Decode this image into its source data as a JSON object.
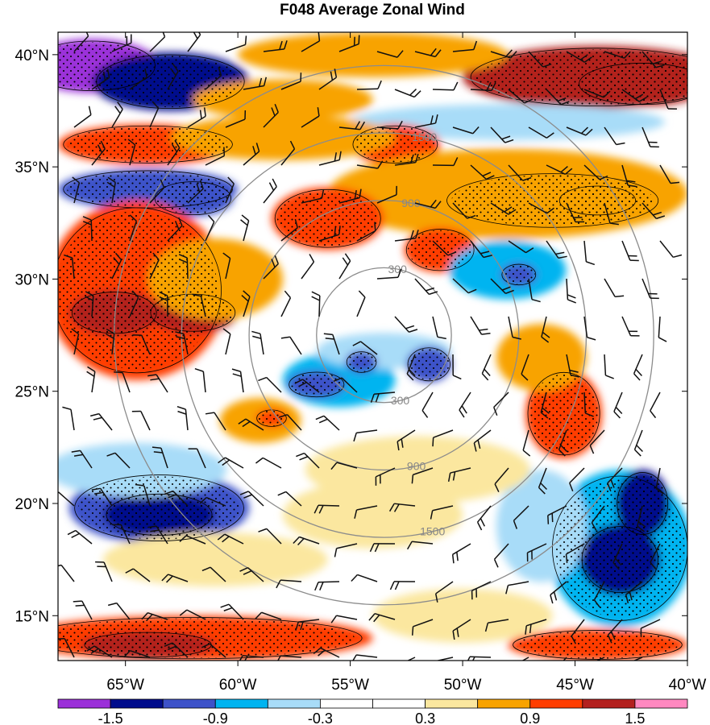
{
  "chart_data": {
    "type": "heatmap",
    "title": "F048 Average Zonal Wind",
    "x_axis": {
      "range": [
        -68,
        -40
      ],
      "tick_values": [
        -65,
        -60,
        -55,
        -50,
        -45,
        -40
      ],
      "tick_labels": [
        "65°W",
        "60°W",
        "55°W",
        "50°W",
        "45°W",
        "40°W"
      ]
    },
    "y_axis": {
      "range": [
        13,
        41
      ],
      "tick_values": [
        15,
        20,
        25,
        30,
        35,
        40
      ],
      "tick_labels": [
        "15°N",
        "20°N",
        "25°N",
        "30°N",
        "35°N",
        "40°N"
      ]
    },
    "colorbar": {
      "orientation": "horizontal",
      "levels": [
        -1.8,
        -1.5,
        -1.2,
        -0.9,
        -0.6,
        -0.3,
        0,
        0.3,
        0.6,
        0.9,
        1.2,
        1.5,
        1.8
      ],
      "colors": [
        "#9b30d9",
        "#000c8c",
        "#3d52c9",
        "#00b4f0",
        "#a8dcf8",
        "#ffffff",
        "#ffffff",
        "#fbe79f",
        "#f8a300",
        "#ff3d00",
        "#b3201e",
        "#ff88c0"
      ],
      "label_values": [
        -1.5,
        -0.9,
        -0.3,
        0.3,
        0.9,
        1.5
      ],
      "labels": [
        "-1.5",
        "-0.9",
        "-0.3",
        "0.3",
        "0.9",
        "1.5"
      ]
    },
    "range_rings": {
      "center": {
        "lon": -53.5,
        "lat": 27.5
      },
      "rings": [
        {
          "radius_deg": 3,
          "label": "300"
        },
        {
          "radius_deg": 6,
          "label": "900"
        },
        {
          "radius_deg": 9,
          "label": "1500"
        },
        {
          "radius_deg": 12,
          "label": ""
        }
      ]
    },
    "features": [
      {
        "lon": -66.5,
        "lat": 39.5,
        "rx": 3.0,
        "ry": 1.2,
        "value": -1.6
      },
      {
        "lon": -63,
        "lat": 38.8,
        "rx": 3.5,
        "ry": 1.3,
        "value": -1.3
      },
      {
        "lon": -44,
        "lat": 39.0,
        "rx": 6.0,
        "ry": 1.4,
        "value": 1.2
      },
      {
        "lon": -42,
        "lat": 38.7,
        "rx": 3.0,
        "ry": 1.0,
        "value": 1.4
      },
      {
        "lon": -54,
        "lat": 40.0,
        "rx": 6.0,
        "ry": 1.0,
        "value": 0.7
      },
      {
        "lon": -58,
        "lat": 38.0,
        "rx": 4.0,
        "ry": 0.9,
        "value": 0.7
      },
      {
        "lon": -48,
        "lat": 37.0,
        "rx": 7.0,
        "ry": 0.8,
        "value": -0.4
      },
      {
        "lon": -64,
        "lat": 36.0,
        "rx": 4.0,
        "ry": 0.9,
        "value": 1.0
      },
      {
        "lon": -53,
        "lat": 36.0,
        "rx": 2.0,
        "ry": 0.9,
        "value": 1.0
      },
      {
        "lon": -58,
        "lat": 36.3,
        "rx": 5.0,
        "ry": 1.0,
        "value": 0.7
      },
      {
        "lon": -64,
        "lat": 34.0,
        "rx": 4.0,
        "ry": 0.9,
        "value": -1.0
      },
      {
        "lon": -62,
        "lat": 33.6,
        "rx": 1.8,
        "ry": 0.8,
        "value": -1.2
      },
      {
        "lon": -46,
        "lat": 33.5,
        "rx": 5.0,
        "ry": 1.3,
        "value": 1.1
      },
      {
        "lon": -44,
        "lat": 33.5,
        "rx": 1.8,
        "ry": 0.7,
        "value": 1.4
      },
      {
        "lon": -48,
        "lat": 33.8,
        "rx": 8.0,
        "ry": 2.0,
        "value": 0.7
      },
      {
        "lon": -56,
        "lat": 32.7,
        "rx": 2.5,
        "ry": 1.4,
        "value": 1.0
      },
      {
        "lon": -51,
        "lat": 31.3,
        "rx": 1.6,
        "ry": 1.0,
        "value": 1.1
      },
      {
        "lon": -48,
        "lat": 30.4,
        "rx": 2.6,
        "ry": 1.3,
        "value": -0.8
      },
      {
        "lon": -47.5,
        "lat": 30.2,
        "rx": 0.8,
        "ry": 0.5,
        "value": -1.1
      },
      {
        "lon": -64.5,
        "lat": 29.5,
        "rx": 4.0,
        "ry": 4.0,
        "value": 1.1
      },
      {
        "lon": -65.5,
        "lat": 28.5,
        "rx": 2.0,
        "ry": 1.0,
        "value": 1.4
      },
      {
        "lon": -62,
        "lat": 28.5,
        "rx": 2.0,
        "ry": 0.9,
        "value": 1.4
      },
      {
        "lon": -61,
        "lat": 30.0,
        "rx": 3.0,
        "ry": 1.8,
        "value": 0.7
      },
      {
        "lon": -55.5,
        "lat": 25.5,
        "rx": 2.5,
        "ry": 1.2,
        "value": -0.8
      },
      {
        "lon": -56.5,
        "lat": 25.3,
        "rx": 1.3,
        "ry": 0.6,
        "value": -1.2
      },
      {
        "lon": -53.5,
        "lat": 26.8,
        "rx": 3.0,
        "ry": 0.8,
        "value": -0.5
      },
      {
        "lon": -51.5,
        "lat": 26.2,
        "rx": 1.0,
        "ry": 0.8,
        "value": -1.0
      },
      {
        "lon": -54.5,
        "lat": 26.3,
        "rx": 0.7,
        "ry": 0.5,
        "value": -1.0
      },
      {
        "lon": -45.5,
        "lat": 24.0,
        "rx": 1.7,
        "ry": 2.0,
        "value": 1.0
      },
      {
        "lon": -46.5,
        "lat": 26.5,
        "rx": 2.0,
        "ry": 1.5,
        "value": 0.7
      },
      {
        "lon": -59,
        "lat": 23.7,
        "rx": 1.8,
        "ry": 1.0,
        "value": 0.7
      },
      {
        "lon": -58.5,
        "lat": 23.8,
        "rx": 0.7,
        "ry": 0.4,
        "value": 1.0
      },
      {
        "lon": -63.5,
        "lat": 19.8,
        "rx": 4.0,
        "ry": 1.6,
        "value": -1.0
      },
      {
        "lon": -63.5,
        "lat": 19.5,
        "rx": 2.5,
        "ry": 1.0,
        "value": -1.3
      },
      {
        "lon": -64.5,
        "lat": 21.5,
        "rx": 4.0,
        "ry": 1.2,
        "value": -0.5
      },
      {
        "lon": -43,
        "lat": 18.0,
        "rx": 3.2,
        "ry": 3.5,
        "value": -0.9
      },
      {
        "lon": -43,
        "lat": 17.5,
        "rx": 1.8,
        "ry": 1.6,
        "value": -1.3
      },
      {
        "lon": -42,
        "lat": 20.0,
        "rx": 1.2,
        "ry": 1.5,
        "value": -1.3
      },
      {
        "lon": -46.5,
        "lat": 19.0,
        "rx": 2.0,
        "ry": 2.5,
        "value": -0.4
      },
      {
        "lon": -52,
        "lat": 21.5,
        "rx": 5.0,
        "ry": 1.5,
        "value": 0.5
      },
      {
        "lon": -54,
        "lat": 19.5,
        "rx": 4.0,
        "ry": 1.5,
        "value": 0.4
      },
      {
        "lon": -61,
        "lat": 17.5,
        "rx": 5.0,
        "ry": 1.2,
        "value": 0.5
      },
      {
        "lon": -62,
        "lat": 14.0,
        "rx": 8.0,
        "ry": 1.0,
        "value": 1.0
      },
      {
        "lon": -64,
        "lat": 13.7,
        "rx": 3.0,
        "ry": 0.6,
        "value": 1.3
      },
      {
        "lon": -44,
        "lat": 13.7,
        "rx": 4.0,
        "ry": 0.7,
        "value": 1.0
      },
      {
        "lon": -50,
        "lat": 15.0,
        "rx": 4.0,
        "ry": 1.2,
        "value": 0.5
      }
    ]
  }
}
